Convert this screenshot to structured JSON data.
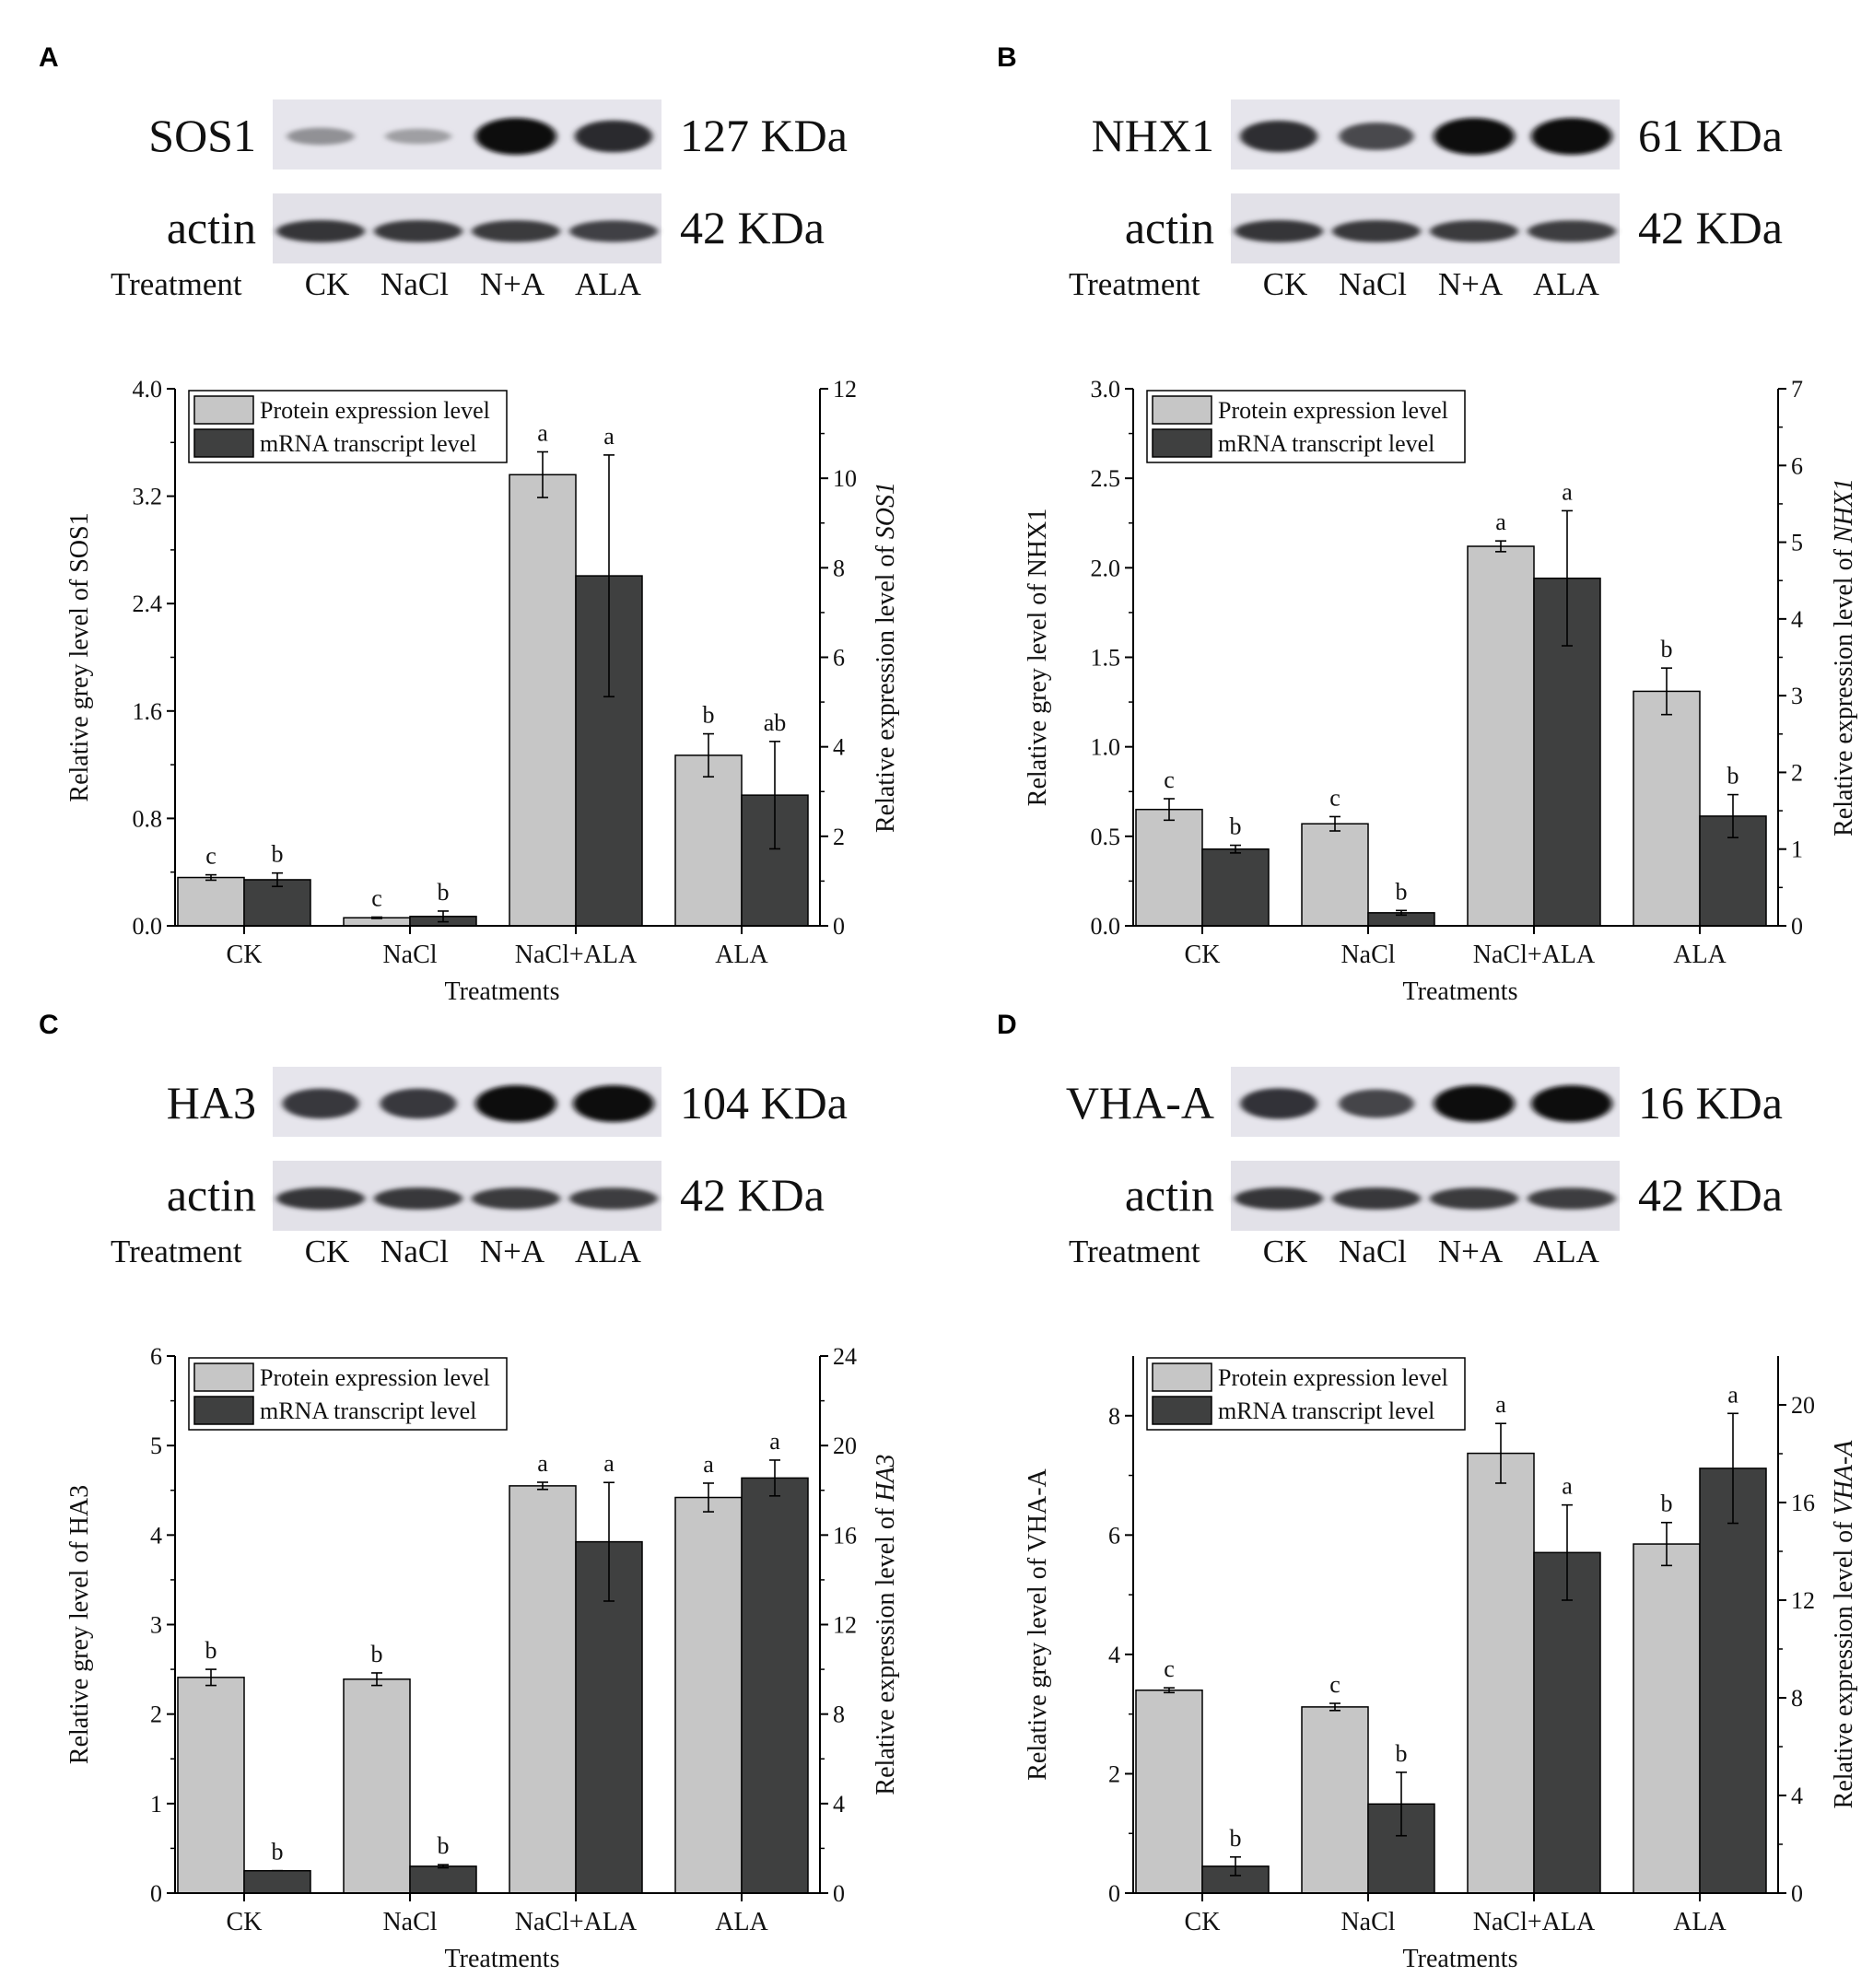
{
  "figure": {
    "panel_letters": [
      "A",
      "B",
      "C",
      "D"
    ]
  },
  "blots": [
    {
      "panel": "A",
      "protein": "SOS1",
      "size": "127 KDa",
      "control": "actin",
      "control_size": "42 KDa",
      "row_label": "Treatment",
      "lanes": [
        "CK",
        "NaCl",
        "N+A",
        "ALA"
      ],
      "band_intensity": [
        0.18,
        0.1,
        1.0,
        0.8
      ],
      "control_intensity": [
        0.82,
        0.8,
        0.78,
        0.74
      ]
    },
    {
      "panel": "B",
      "protein": "NHX1",
      "size": "61 KDa",
      "control": "actin",
      "control_size": "42 KDa",
      "row_label": "Treatment",
      "lanes": [
        "CK",
        "NaCl",
        "N+A",
        "ALA"
      ],
      "band_intensity": [
        0.78,
        0.62,
        1.0,
        1.0
      ],
      "control_intensity": [
        0.82,
        0.8,
        0.78,
        0.76
      ]
    },
    {
      "panel": "C",
      "protein": "HA3",
      "size": "104 KDa",
      "control": "actin",
      "control_size": "42 KDa",
      "row_label": "Treatment",
      "lanes": [
        "CK",
        "NaCl",
        "N+A",
        "ALA"
      ],
      "band_intensity": [
        0.72,
        0.72,
        1.0,
        1.0
      ],
      "control_intensity": [
        0.82,
        0.8,
        0.78,
        0.76
      ]
    },
    {
      "panel": "D",
      "protein": "VHA-A",
      "size": "16 KDa",
      "control": "actin",
      "control_size": "42 KDa",
      "row_label": "Treatment",
      "lanes": [
        "CK",
        "NaCl",
        "N+A",
        "ALA"
      ],
      "band_intensity": [
        0.75,
        0.65,
        1.0,
        1.0
      ],
      "control_intensity": [
        0.82,
        0.8,
        0.78,
        0.76
      ]
    }
  ],
  "colors": {
    "protein": "#c6c6c6",
    "mrna": "#3f4040",
    "axis": "#000000"
  },
  "chart_data": [
    {
      "panel": "A",
      "type": "bar",
      "categories": [
        "CK",
        "NaCl",
        "NaCl+ALA",
        "ALA"
      ],
      "xlabel": "Treatments",
      "ylabel": "Relative grey level of SOS1",
      "y2label_prefix": "Relative expression level of ",
      "y2label_gene": "SOS1",
      "ylim": [
        0,
        4.0
      ],
      "yticks": [
        "0.0",
        "0.8",
        "1.6",
        "2.4",
        "3.2",
        "4.0"
      ],
      "y2lim": [
        0,
        12
      ],
      "y2ticks": [
        "0",
        "2",
        "4",
        "6",
        "8",
        "10",
        "12"
      ],
      "legend": [
        "Protein expression level",
        "mRNA transcript level"
      ],
      "legend_position": "top-left",
      "series": [
        {
          "name": "Protein expression level",
          "axis": "left",
          "values": [
            0.36,
            0.06,
            3.36,
            1.27
          ],
          "errors": [
            0.02,
            0.005,
            0.17,
            0.16
          ],
          "labels": [
            "c",
            "c",
            "a",
            "b"
          ]
        },
        {
          "name": "mRNA transcript level",
          "axis": "right",
          "values": [
            1.03,
            0.21,
            7.82,
            2.92
          ],
          "errors": [
            0.15,
            0.12,
            2.7,
            1.2
          ],
          "labels": [
            "b",
            "b",
            "a",
            "ab"
          ]
        }
      ]
    },
    {
      "panel": "B",
      "type": "bar",
      "categories": [
        "CK",
        "NaCl",
        "NaCl+ALA",
        "ALA"
      ],
      "xlabel": "Treatments",
      "ylabel": "Relative grey level of NHX1",
      "y2label_prefix": "Relative expression level of ",
      "y2label_gene": "NHX1",
      "ylim": [
        0,
        3.0
      ],
      "yticks": [
        "0.0",
        "0.5",
        "1.0",
        "1.5",
        "2.0",
        "2.5",
        "3.0"
      ],
      "y2lim": [
        0,
        7
      ],
      "y2ticks": [
        "0",
        "1",
        "2",
        "3",
        "4",
        "5",
        "6",
        "7"
      ],
      "legend": [
        "Protein expression level",
        "mRNA transcript level"
      ],
      "legend_position": "top-left",
      "series": [
        {
          "name": "Protein expression level",
          "axis": "left",
          "values": [
            0.65,
            0.57,
            2.12,
            1.31
          ],
          "errors": [
            0.06,
            0.04,
            0.03,
            0.13
          ],
          "labels": [
            "c",
            "c",
            "a",
            "b"
          ]
        },
        {
          "name": "mRNA transcript level",
          "axis": "right",
          "values": [
            1.0,
            0.17,
            4.53,
            1.43
          ],
          "errors": [
            0.05,
            0.03,
            0.88,
            0.28
          ],
          "labels": [
            "b",
            "b",
            "a",
            "b"
          ]
        }
      ]
    },
    {
      "panel": "C",
      "type": "bar",
      "categories": [
        "CK",
        "NaCl",
        "NaCl+ALA",
        "ALA"
      ],
      "xlabel": "Treatments",
      "ylabel": "Relative grey level of HA3",
      "y2label_prefix": "Relative expression level of ",
      "y2label_gene": "HA3",
      "ylim": [
        0,
        6
      ],
      "yticks": [
        "0",
        "1",
        "2",
        "3",
        "4",
        "5",
        "6"
      ],
      "y2lim": [
        0,
        24
      ],
      "y2ticks": [
        "0",
        "4",
        "8",
        "12",
        "16",
        "20",
        "24"
      ],
      "legend": [
        "Protein expression level",
        "mRNA transcript level"
      ],
      "legend_position": "top-left",
      "series": [
        {
          "name": "Protein expression level",
          "axis": "left",
          "values": [
            2.41,
            2.39,
            4.55,
            4.42
          ],
          "errors": [
            0.09,
            0.07,
            0.04,
            0.16
          ],
          "labels": [
            "b",
            "b",
            "a",
            "a"
          ]
        },
        {
          "name": "mRNA transcript level",
          "axis": "right",
          "values": [
            1.0,
            1.2,
            15.7,
            18.55
          ],
          "errors": [
            0.0,
            0.07,
            2.65,
            0.8
          ],
          "labels": [
            "b",
            "b",
            "a",
            "a"
          ]
        }
      ]
    },
    {
      "panel": "D",
      "type": "bar",
      "categories": [
        "CK",
        "NaCl",
        "NaCl+ALA",
        "ALA"
      ],
      "xlabel": "Treatments",
      "ylabel": "Relative grey level of VHA-A",
      "y2label_prefix": "Relative expression level of ",
      "y2label_gene": "VHA-A",
      "ylim": [
        0,
        9
      ],
      "yticks": [
        "0",
        "2",
        "4",
        "6",
        "8"
      ],
      "y2lim": [
        0,
        22
      ],
      "y2ticks": [
        "0",
        "4",
        "8",
        "12",
        "16",
        "20"
      ],
      "legend": [
        "Protein expression level",
        "mRNA transcript level"
      ],
      "legend_position": "top-left",
      "series": [
        {
          "name": "Protein expression level",
          "axis": "left",
          "values": [
            3.4,
            3.12,
            7.37,
            5.85
          ],
          "errors": [
            0.04,
            0.06,
            0.5,
            0.36
          ],
          "labels": [
            "c",
            "c",
            "a",
            "b"
          ]
        },
        {
          "name": "mRNA transcript level",
          "axis": "right",
          "values": [
            1.1,
            3.65,
            13.95,
            17.4
          ],
          "errors": [
            0.38,
            1.3,
            1.95,
            2.25
          ],
          "labels": [
            "b",
            "b",
            "a",
            "a"
          ]
        }
      ]
    }
  ]
}
